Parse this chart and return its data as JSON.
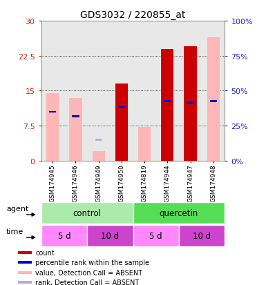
{
  "title": "GDS3032 / 220855_at",
  "samples": [
    "GSM174945",
    "GSM174946",
    "GSM174949",
    "GSM174950",
    "GSM174819",
    "GSM174944",
    "GSM174947",
    "GSM174948"
  ],
  "ylim_left": [
    0,
    30
  ],
  "ylim_right": [
    0,
    100
  ],
  "yticks_left": [
    0,
    7.5,
    15,
    22.5,
    30
  ],
  "yticks_right": [
    0,
    25,
    50,
    75,
    100
  ],
  "pink_bars": [
    14.5,
    13.5,
    2.0,
    0.0,
    7.2,
    0.0,
    0.0,
    26.5
  ],
  "red_bars": [
    0.0,
    0.0,
    0.0,
    16.5,
    0.0,
    24.0,
    24.5,
    0.0
  ],
  "blue_marker_y": [
    10.5,
    9.5,
    0.0,
    11.5,
    0.0,
    12.8,
    12.5,
    12.8
  ],
  "blue_marker_present": [
    true,
    true,
    false,
    true,
    false,
    true,
    true,
    true
  ],
  "lightblue_marker_y": [
    0.0,
    0.0,
    4.5,
    0.0,
    0.0,
    0.0,
    0.0,
    0.0
  ],
  "agent_colors": [
    "#aaeaaa",
    "#55dd55"
  ],
  "time_colors_light": "#ff88ff",
  "time_colors_dark": "#cc44cc",
  "left_tick_color": "#cc2200",
  "right_tick_color": "#2222cc",
  "legend_colors": [
    "#cc0000",
    "#0000cc",
    "#ffb6b6",
    "#b0b0dd"
  ],
  "legend_labels": [
    "count",
    "percentile rank within the sample",
    "value, Detection Call = ABSENT",
    "rank, Detection Call = ABSENT"
  ]
}
